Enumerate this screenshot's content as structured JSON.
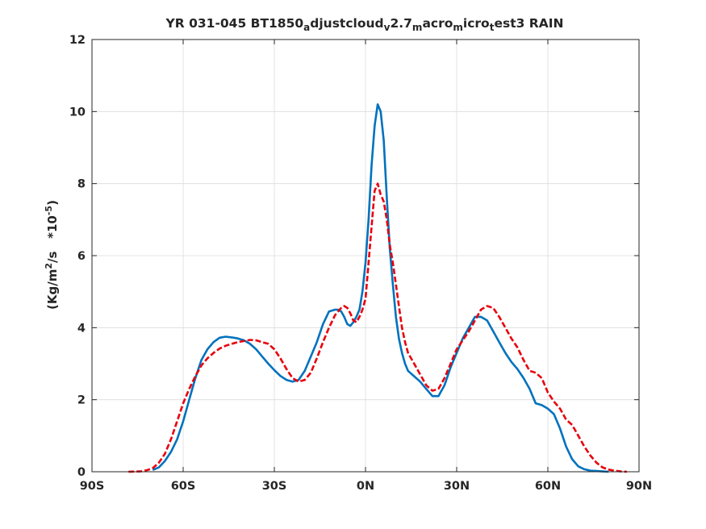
{
  "chart_data": {
    "type": "line",
    "title_parts": [
      "YR 031-045 BT1850",
      "a",
      "djustcloud",
      "v",
      "2.7",
      "m",
      "acro",
      "m",
      "icro",
      "t",
      "est3 RAIN"
    ],
    "ylabel_parts": [
      "(Kg/m",
      "2",
      "/s   *10",
      "-5",
      ")"
    ],
    "xlim": [
      -90,
      90
    ],
    "ylim": [
      0,
      12
    ],
    "x_ticks": [
      {
        "value": -90,
        "label": "90S"
      },
      {
        "value": -60,
        "label": "60S"
      },
      {
        "value": -30,
        "label": "30S"
      },
      {
        "value": 0,
        "label": "0N"
      },
      {
        "value": 30,
        "label": "30N"
      },
      {
        "value": 60,
        "label": "60N"
      },
      {
        "value": 90,
        "label": "90N"
      }
    ],
    "y_ticks": [
      {
        "value": 0,
        "label": "0"
      },
      {
        "value": 2,
        "label": "2"
      },
      {
        "value": 4,
        "label": "4"
      },
      {
        "value": 6,
        "label": "6"
      },
      {
        "value": 8,
        "label": "8"
      },
      {
        "value": 10,
        "label": "10"
      },
      {
        "value": 12,
        "label": "12"
      }
    ],
    "grid": true,
    "series": [
      {
        "color": "#0072bd",
        "style": "solid",
        "x": [
          -70,
          -68,
          -66,
          -64,
          -62,
          -60,
          -58,
          -56,
          -54,
          -52,
          -50,
          -48,
          -46,
          -44,
          -42,
          -40,
          -38,
          -36,
          -34,
          -32,
          -30,
          -28,
          -26,
          -24,
          -22,
          -20,
          -18,
          -16,
          -14,
          -12,
          -10,
          -9,
          -8,
          -7,
          -6,
          -5,
          -4,
          -3,
          -2,
          -1,
          0,
          1,
          2,
          3,
          4,
          5,
          6,
          7,
          8,
          9,
          10,
          11,
          12,
          13,
          14,
          16,
          18,
          20,
          22,
          24,
          26,
          28,
          30,
          32,
          34,
          36,
          38,
          40,
          42,
          44,
          46,
          48,
          50,
          52,
          54,
          56,
          58,
          60,
          62,
          64,
          66,
          68,
          70,
          72,
          74,
          76,
          78,
          80
        ],
        "y": [
          0.05,
          0.12,
          0.3,
          0.55,
          0.9,
          1.4,
          2.0,
          2.6,
          3.1,
          3.4,
          3.6,
          3.72,
          3.75,
          3.73,
          3.7,
          3.65,
          3.55,
          3.4,
          3.2,
          3.0,
          2.82,
          2.66,
          2.55,
          2.5,
          2.55,
          2.8,
          3.2,
          3.6,
          4.1,
          4.45,
          4.5,
          4.5,
          4.45,
          4.3,
          4.1,
          4.05,
          4.15,
          4.3,
          4.5,
          5.0,
          5.8,
          7.0,
          8.5,
          9.6,
          10.2,
          10.0,
          9.2,
          7.6,
          6.2,
          5.2,
          4.3,
          3.7,
          3.3,
          3.0,
          2.8,
          2.65,
          2.5,
          2.3,
          2.1,
          2.1,
          2.4,
          2.9,
          3.3,
          3.7,
          4.0,
          4.3,
          4.3,
          4.2,
          3.9,
          3.6,
          3.3,
          3.05,
          2.85,
          2.6,
          2.3,
          1.9,
          1.85,
          1.75,
          1.6,
          1.2,
          0.7,
          0.35,
          0.15,
          0.07,
          0.03,
          0.02,
          0.01,
          0.0
        ]
      },
      {
        "color": "#e8000b",
        "style": "dashed",
        "x": [
          -78,
          -74,
          -72,
          -70,
          -68,
          -66,
          -64,
          -62,
          -60,
          -58,
          -56,
          -54,
          -52,
          -50,
          -48,
          -46,
          -44,
          -42,
          -40,
          -38,
          -36,
          -34,
          -32,
          -30,
          -28,
          -26,
          -24,
          -22,
          -20,
          -18,
          -16,
          -14,
          -12,
          -10,
          -9,
          -8,
          -7,
          -6,
          -5,
          -4,
          -3,
          -2,
          -1,
          0,
          1,
          2,
          3,
          4,
          5,
          6,
          7,
          8,
          9,
          10,
          11,
          12,
          13,
          14,
          16,
          18,
          20,
          22,
          24,
          26,
          28,
          30,
          32,
          34,
          36,
          38,
          40,
          42,
          44,
          46,
          48,
          50,
          52,
          54,
          56,
          58,
          60,
          62,
          64,
          66,
          68,
          70,
          72,
          74,
          76,
          78,
          80,
          82,
          84,
          86
        ],
        "y": [
          0.0,
          0.01,
          0.04,
          0.1,
          0.25,
          0.5,
          0.9,
          1.4,
          1.9,
          2.3,
          2.65,
          2.95,
          3.15,
          3.3,
          3.42,
          3.5,
          3.55,
          3.6,
          3.63,
          3.66,
          3.65,
          3.6,
          3.55,
          3.4,
          3.15,
          2.85,
          2.6,
          2.5,
          2.55,
          2.75,
          3.15,
          3.6,
          4.0,
          4.35,
          4.45,
          4.55,
          4.6,
          4.55,
          4.4,
          4.2,
          4.15,
          4.3,
          4.5,
          4.8,
          5.8,
          6.8,
          7.8,
          8.0,
          7.7,
          7.5,
          7.0,
          6.3,
          5.8,
          5.2,
          4.6,
          4.0,
          3.6,
          3.3,
          3.0,
          2.7,
          2.4,
          2.25,
          2.3,
          2.6,
          3.0,
          3.4,
          3.65,
          3.9,
          4.2,
          4.5,
          4.6,
          4.55,
          4.3,
          4.0,
          3.7,
          3.45,
          3.1,
          2.8,
          2.75,
          2.6,
          2.2,
          1.95,
          1.75,
          1.45,
          1.3,
          1.0,
          0.7,
          0.45,
          0.25,
          0.12,
          0.06,
          0.03,
          0.01,
          0.0
        ]
      }
    ]
  }
}
